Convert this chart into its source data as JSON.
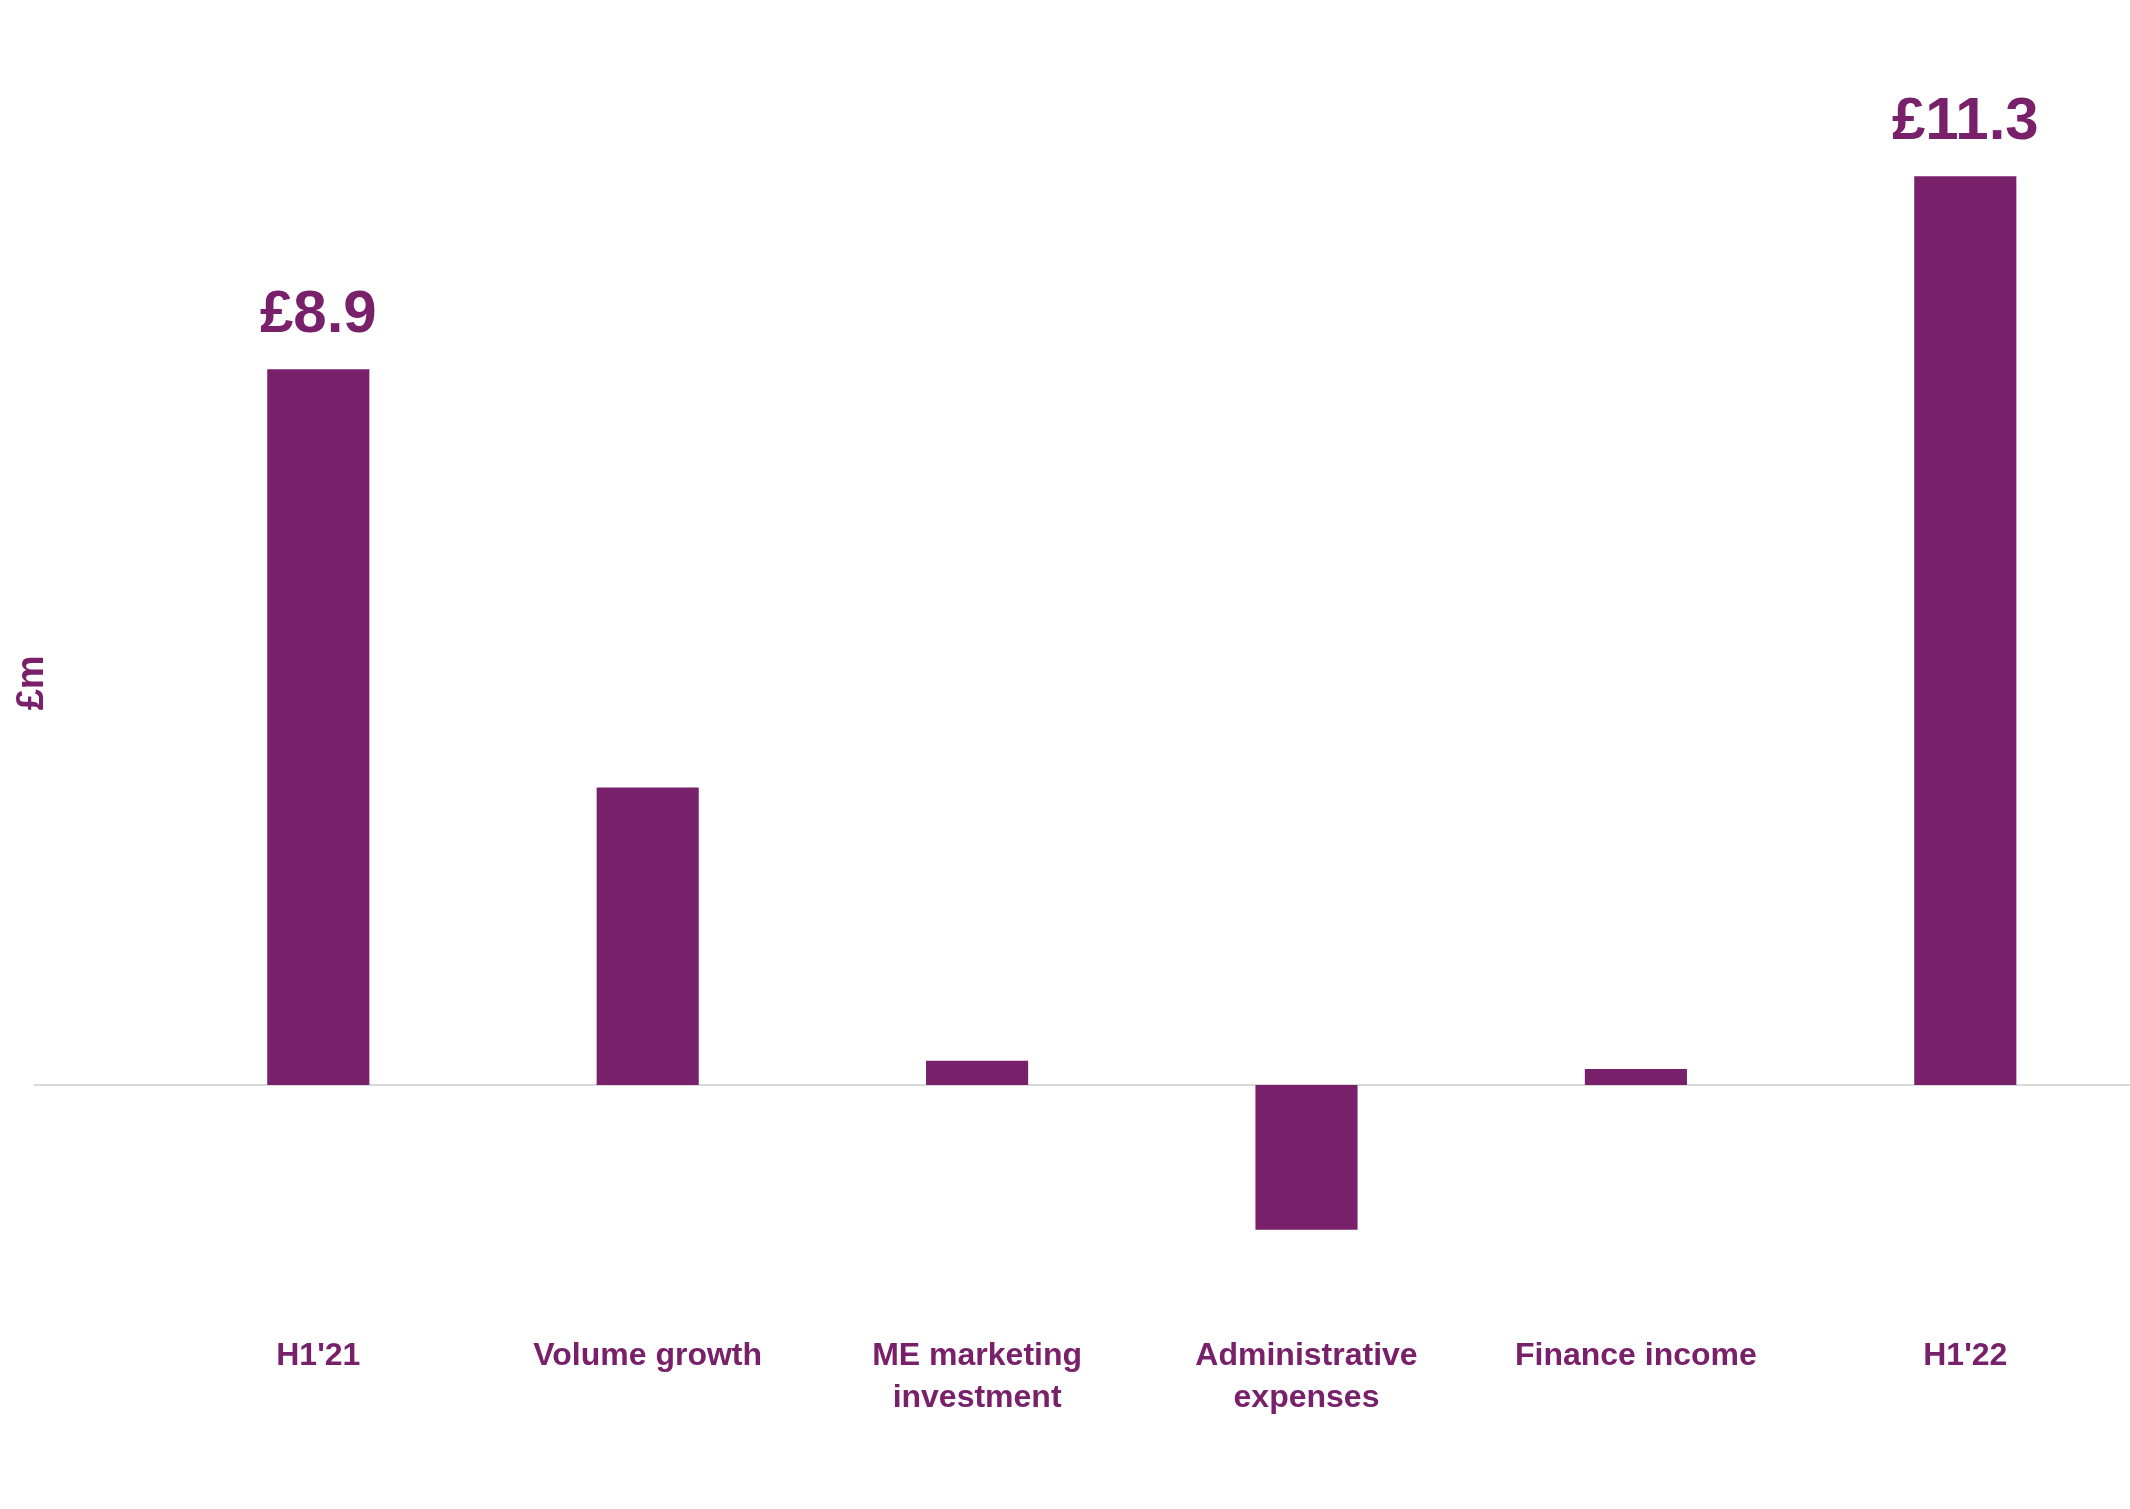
{
  "chart_data": {
    "type": "bar",
    "ylabel": "£m",
    "categories": [
      "H1'21",
      "Volume growth",
      "ME marketing investment",
      "Administrative expenses",
      "Finance income",
      "H1'22"
    ],
    "values": [
      8.9,
      3.7,
      0.3,
      -1.8,
      0.2,
      11.3
    ],
    "value_labels": [
      "£8.9",
      null,
      null,
      null,
      null,
      "£11.3"
    ],
    "color": "#78206a",
    "ref_lines": [
      {
        "axis": "y",
        "value": 0,
        "color": "#d9d9d9"
      }
    ],
    "tick_labels": "x",
    "grid": false,
    "legend": false
  }
}
